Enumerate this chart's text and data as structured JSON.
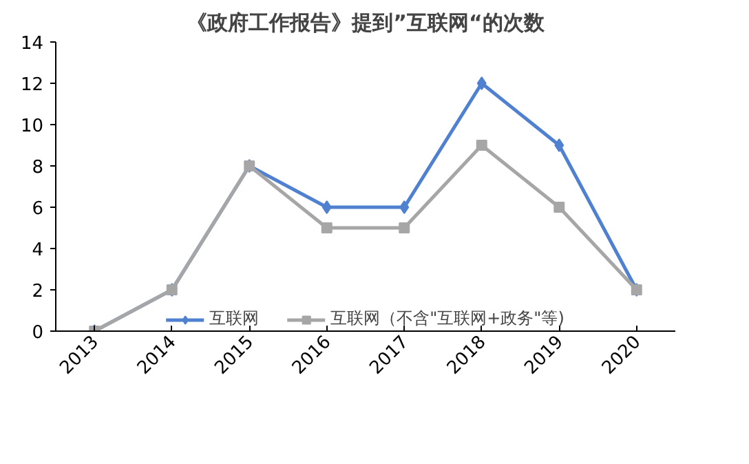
{
  "chart_data": {
    "type": "line",
    "title": "《政府工作报告》提到”互联网“的次数",
    "categories": [
      "2013",
      "2014",
      "2015",
      "2016",
      "2017",
      "2018",
      "2019",
      "2020"
    ],
    "series": [
      {
        "name": "互联网",
        "color": "#4f81d0",
        "marker": "diamond",
        "values": [
          0,
          2,
          8,
          6,
          6,
          12,
          9,
          2
        ]
      },
      {
        "name": "互联网（不含\"互联网+政务\"等)",
        "color": "#a6a6a6",
        "marker": "square",
        "values": [
          0,
          2,
          8,
          5,
          5,
          9,
          6,
          2
        ]
      }
    ],
    "ylim": [
      0,
      14
    ],
    "yticks": [
      0,
      2,
      4,
      6,
      8,
      10,
      12,
      14
    ],
    "grid": false,
    "legend": "bottom",
    "line_style": "solid"
  }
}
